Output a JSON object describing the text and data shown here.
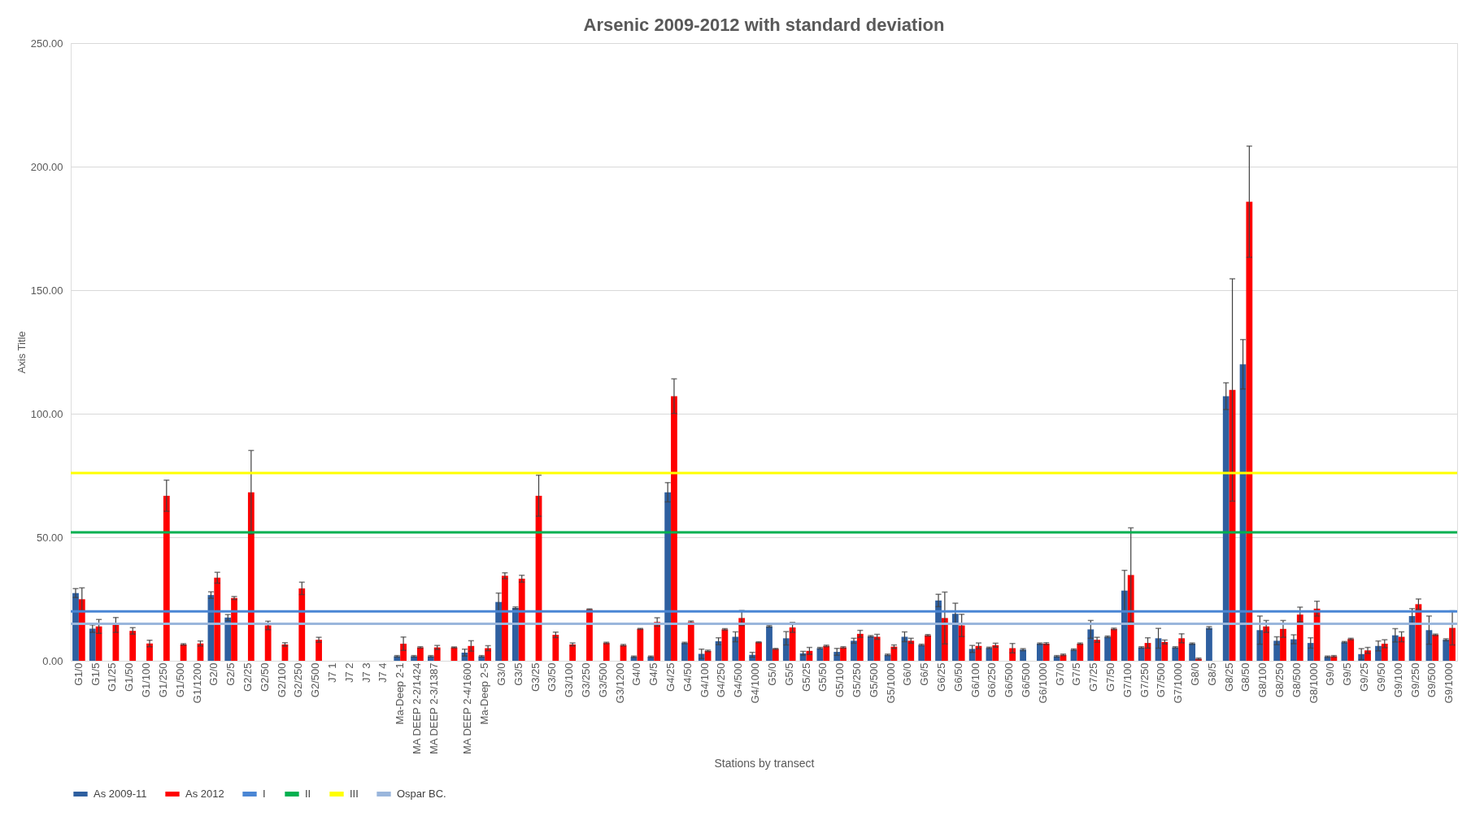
{
  "chart_data": {
    "type": "bar",
    "title": "Arsenic 2009-2012 with standard deviation",
    "xlabel": "Stations by transect",
    "ylabel": "Axis Title",
    "categories": [
      "G1/0",
      "G1/5",
      "G1/25",
      "G1/50",
      "G1/100",
      "G1/250",
      "G1/500",
      "G1/1200",
      "G2/0",
      "G2/5",
      "G2/25",
      "G2/50",
      "G2/100",
      "G2/250",
      "G2/500",
      "J7 1",
      "J7 2",
      "J7 3",
      "J7 4",
      "Ma-Deep 2-1",
      "MA DEEP 2-2/1424",
      "MA DEEP 2-3/1387",
      null,
      "MA DEEP 2-4/1600",
      "Ma-Deep 2-5",
      "G3/0",
      "G3/5",
      "G3/25",
      "G3/50",
      "G3/100",
      "G3/250",
      "G3/500",
      "G3/1200",
      "G4/0",
      "G4/5",
      "G4/25",
      "G4/50",
      "G4/100",
      "G4/250",
      "G4/500",
      "G4/1000",
      "G5/0",
      "G5/5",
      "G5/25",
      "G5/50",
      "G5/100",
      "G5/250",
      "G5/500",
      "G5/1000",
      "G6/0",
      "G6/5",
      "G6/25",
      "G6/50",
      "G6/100",
      "G6/250",
      "G6/500",
      "G6/500",
      "G6/1000",
      "G7/0",
      "G7/5",
      "G7/25",
      "G7/50",
      "G7/100",
      "G7/250",
      "G7/500",
      "G7/1000",
      "G8/0",
      "G8/5",
      "G8/25",
      "G8/50",
      "G8/100",
      "G8/250",
      "G8/500",
      "G8/1000",
      "G9/0",
      "G9/5",
      "G9/25",
      "G9/50",
      "G9/100",
      "G9/250",
      "G9/500",
      "G9/1000"
    ],
    "series": [
      {
        "name": "As 2009-11",
        "color": "#2e5fa0",
        "values": [
          27.4,
          13.0,
          null,
          null,
          null,
          null,
          null,
          null,
          26.6,
          17.5,
          null,
          null,
          null,
          null,
          null,
          null,
          null,
          null,
          null,
          1.8,
          1.8,
          1.8,
          null,
          3.3,
          1.8,
          23.8,
          21.4,
          null,
          null,
          null,
          null,
          null,
          null,
          1.6,
          1.6,
          68.2,
          7.2,
          2.8,
          7.9,
          9.7,
          2.4,
          13.9,
          9.1,
          3.0,
          5.1,
          3.6,
          8.1,
          9.9,
          2.4,
          9.7,
          6.4,
          24.4,
          19.0,
          4.8,
          5.2,
          null,
          4.5,
          6.9,
          1.8,
          4.5,
          12.7,
          9.7,
          28.4,
          5.4,
          9.1,
          5.4,
          6.9,
          13.3,
          107.1,
          120.0,
          12.4,
          8.1,
          8.7,
          7.2,
          1.6,
          7.5,
          2.7,
          6.0,
          10.3,
          18.1,
          12.4,
          8.5
        ],
        "errors": [
          1.8,
          1.5,
          null,
          null,
          null,
          null,
          null,
          null,
          1.3,
          1.2,
          null,
          null,
          null,
          null,
          null,
          null,
          null,
          null,
          null,
          0.3,
          0.3,
          0.3,
          null,
          1.4,
          0.3,
          3.6,
          0.4,
          null,
          null,
          null,
          null,
          null,
          null,
          0.3,
          0.3,
          3.9,
          0.3,
          1.9,
          1.4,
          2.0,
          1.0,
          0.3,
          2.7,
          0.8,
          0.3,
          1.4,
          1.0,
          0.3,
          0.3,
          2.0,
          0.3,
          2.5,
          4.3,
          1.4,
          0.3,
          null,
          0.4,
          0.3,
          0.3,
          0.3,
          3.6,
          0.3,
          8.2,
          0.3,
          4.0,
          0.3,
          0.3,
          0.5,
          5.4,
          10.0,
          5.7,
          1.6,
          1.8,
          2.1,
          0.3,
          0.3,
          2.2,
          2.0,
          2.7,
          3.0,
          5.7,
          0.4
        ]
      },
      {
        "name": "As 2012",
        "color": "#ff0000",
        "values": [
          24.9,
          13.9,
          14.5,
          12.1,
          7.0,
          66.8,
          6.6,
          7.0,
          33.6,
          25.4,
          68.2,
          14.3,
          6.6,
          29.3,
          8.5,
          null,
          null,
          null,
          null,
          6.9,
          5.4,
          5.4,
          5.4,
          6.0,
          5.1,
          34.4,
          33.2,
          66.8,
          10.5,
          6.6,
          20.8,
          7.2,
          6.3,
          12.9,
          15.7,
          107.1,
          15.7,
          4.0,
          12.7,
          17.3,
          7.5,
          4.8,
          13.5,
          4.0,
          6.0,
          5.4,
          10.9,
          9.7,
          5.7,
          8.1,
          10.3,
          17.3,
          14.3,
          6.0,
          6.3,
          5.1,
          null,
          6.9,
          2.4,
          6.9,
          8.5,
          12.9,
          34.7,
          7.2,
          7.6,
          9.1,
          0.8,
          null,
          109.6,
          185.8,
          13.9,
          12.9,
          18.7,
          21.1,
          1.8,
          8.8,
          4.2,
          6.9,
          9.7,
          22.9,
          10.5,
          13.3
        ],
        "errors": [
          4.6,
          2.8,
          3.0,
          1.3,
          1.3,
          6.3,
          0.3,
          1.0,
          2.2,
          0.6,
          16.9,
          1.7,
          0.7,
          2.5,
          1.0,
          null,
          null,
          null,
          null,
          2.7,
          0.3,
          0.8,
          0.2,
          2.1,
          1.0,
          1.2,
          1.4,
          8.3,
          1.1,
          0.6,
          0.2,
          0.3,
          0.3,
          0.2,
          1.7,
          7.0,
          0.4,
          0.3,
          0.3,
          3.0,
          0.2,
          0.2,
          2.0,
          1.4,
          0.3,
          0.3,
          1.4,
          1.0,
          0.7,
          1.0,
          0.3,
          10.5,
          4.5,
          1.2,
          0.8,
          1.9,
          null,
          0.4,
          0.3,
          0.3,
          1.0,
          0.3,
          19.1,
          2.1,
          0.8,
          1.8,
          0.3,
          null,
          45.0,
          22.5,
          2.4,
          3.4,
          3.0,
          3.0,
          0.3,
          0.3,
          1.2,
          1.6,
          2.0,
          2.1,
          0.3,
          6.9
        ]
      }
    ],
    "ref_lines": [
      {
        "axis": "y",
        "value": 20,
        "label": "I",
        "color": "#4a86d4"
      },
      {
        "axis": "y",
        "value": 52,
        "label": "II",
        "color": "#00b050"
      },
      {
        "axis": "y",
        "value": 76,
        "label": "III",
        "color": "#ffff00"
      },
      {
        "axis": "y",
        "value": 15,
        "label": "Ospar  BC.",
        "color": "#9ab6dc"
      }
    ],
    "ylim": [
      0,
      250
    ],
    "yticks": [
      {
        "value": 0,
        "label": "0.00"
      },
      {
        "value": 50,
        "label": "50.00"
      },
      {
        "value": 100,
        "label": "100.00"
      },
      {
        "value": 150,
        "label": "150.00"
      },
      {
        "value": 200,
        "label": "200.00"
      },
      {
        "value": 250,
        "label": "250.00"
      }
    ],
    "grid": "y",
    "legend": "bottom"
  }
}
